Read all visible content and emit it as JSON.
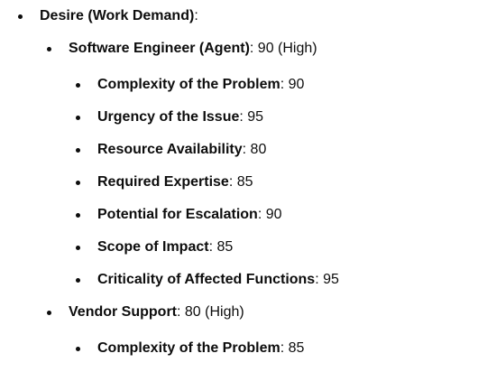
{
  "list": {
    "desire": {
      "label": "Desire (Work Demand)",
      "suffix": ":"
    },
    "software_engineer": {
      "label": "Software Engineer (Agent)",
      "value": ": 90 (High)",
      "items": [
        {
          "label": "Complexity of the Problem",
          "value": ": 90"
        },
        {
          "label": "Urgency of the Issue",
          "value": ": 95"
        },
        {
          "label": "Resource Availability",
          "value": ": 80"
        },
        {
          "label": "Required Expertise",
          "value": ": 85"
        },
        {
          "label": "Potential for Escalation",
          "value": ": 90"
        },
        {
          "label": "Scope of Impact",
          "value": ": 85"
        },
        {
          "label": "Criticality of Affected Functions",
          "value": ": 95"
        }
      ]
    },
    "vendor_support": {
      "label": "Vendor Support",
      "value": ": 80 (High)",
      "items": [
        {
          "label": "Complexity of the Problem",
          "value": ": 85"
        }
      ]
    }
  }
}
